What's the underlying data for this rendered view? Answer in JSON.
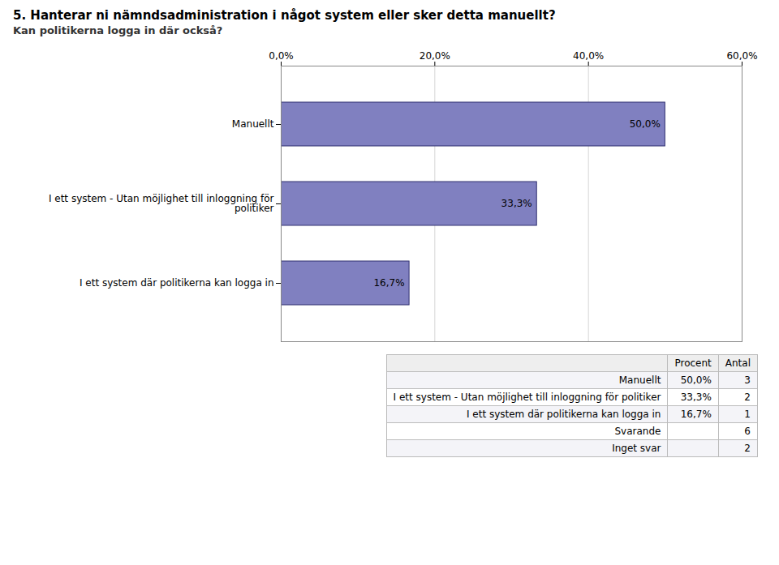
{
  "chart_data": {
    "type": "bar",
    "orientation": "horizontal",
    "title": "5. Hanterar ni nämndsadministration i något system eller sker detta manuellt?",
    "subtitle": "Kan politikerna logga in där också?",
    "categories": [
      "Manuellt",
      "I ett system - Utan möjlighet till inloggning för\npolitiker",
      "I ett system där politikerna kan logga in"
    ],
    "values": [
      50.0,
      33.3,
      16.7
    ],
    "value_labels": [
      "50,0%",
      "33,3%",
      "16,7%"
    ],
    "data_labels": true,
    "color": "#8080C0",
    "xlim": [
      0,
      60
    ],
    "xticks": [
      {
        "value": 0,
        "label": "0,0%"
      },
      {
        "value": 20,
        "label": "20,0%"
      },
      {
        "value": 40,
        "label": "40,0%"
      },
      {
        "value": 60,
        "label": "60,0%"
      }
    ],
    "grid": true,
    "table": {
      "columns": [
        "Procent",
        "Antal"
      ],
      "rows": [
        {
          "label": "Manuellt",
          "cells": [
            "50,0%",
            3
          ]
        },
        {
          "label": "I ett system - Utan möjlighet till inloggning för politiker",
          "cells": [
            "33,3%",
            2
          ]
        },
        {
          "label": "I ett system där politikerna kan logga in",
          "cells": [
            "16,7%",
            1
          ]
        },
        {
          "label": "Svarande",
          "cells": [
            null,
            6
          ]
        },
        {
          "label": "Inget svar",
          "cells": [
            null,
            2
          ]
        }
      ]
    }
  }
}
